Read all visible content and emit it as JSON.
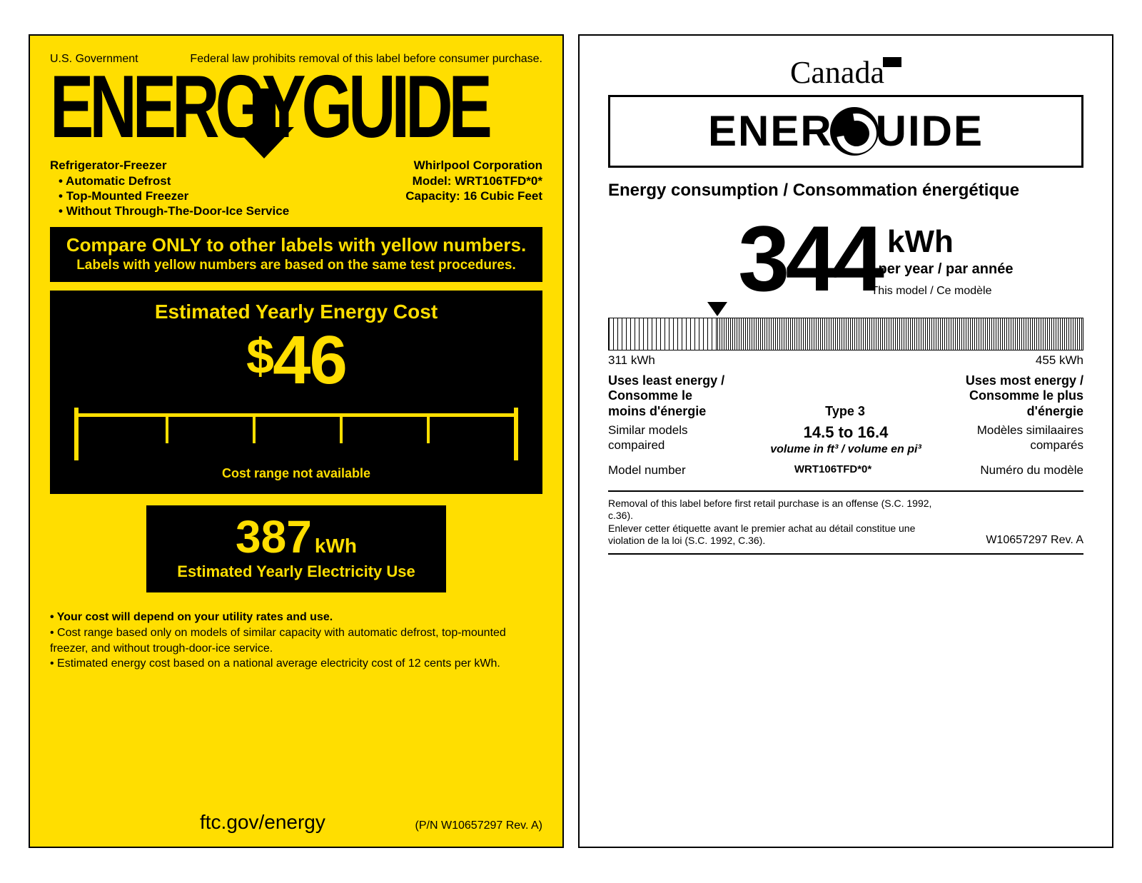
{
  "colors": {
    "us_bg": "#ffde00",
    "black": "#000000",
    "white": "#ffffff"
  },
  "us": {
    "gov": "U.S. Government",
    "law": "Federal law prohibits removal of this label before consumer purchase.",
    "logo": "ENERGYGUIDE",
    "product_type": "Refrigerator-Freezer",
    "features": [
      "Automatic Defrost",
      "Top-Mounted Freezer",
      "Without Through-The-Door-Ice Service"
    ],
    "brand": "Whirlpool Corporation",
    "model_label": "Model:",
    "model": "WRT106TFD*0*",
    "capacity_label": "Capacity:",
    "capacity": "16  Cubic Feet",
    "compare1": "Compare ONLY to other labels with yellow numbers.",
    "compare2": "Labels with yellow numbers are based on the same test procedures.",
    "cost_title": "Estimated Yearly Energy Cost",
    "cost_value": "46",
    "cost_note": "Cost range not available",
    "tick_positions_pct": [
      20,
      40,
      60,
      80
    ],
    "kwh_value": "387",
    "kwh_unit": "kWh",
    "kwh_sub": "Estimated Yearly Electricity Use",
    "note1": "Your cost will depend on your utility rates and use.",
    "note2": "Cost range based only on models of similar capacity with automatic defrost, top-mounted freezer, and without trough-door-ice service.",
    "note3": "Estimated energy cost based on a national average electricity cost of 12 cents per kWh.",
    "url": "ftc.gov/energy",
    "pn": "(P/N W10657297 Rev. A)"
  },
  "ca": {
    "country": "Canada",
    "logo_left": "ENER",
    "logo_right": "UIDE",
    "sub": "Energy consumption / Consommation énergétique",
    "kwh_value": "344",
    "kwh_unit": "kWh",
    "per": "per year / par année",
    "this_model": "This model / Ce modèle",
    "range_min": 311,
    "range_max": 455,
    "range_min_label": "311 kWh",
    "range_max_label": "455 kWh",
    "marker_value": 344,
    "least1": "Uses least energy /",
    "least2": "Consomme le",
    "least3": "moins d'énergie",
    "most1": "Uses most energy /",
    "most2": "Consomme le plus",
    "most3": "d'énergie",
    "type": "Type 3",
    "similar_l": "Similar models compaired",
    "similar_r": "Modèles similaaires comparés",
    "volume": "14.5 to 16.4",
    "volume_sub": "volume in ft³ / volume en pi³",
    "modelnum_l": "Model number",
    "modelnum_r": "Numéro du modèle",
    "model": "WRT106TFD*0*",
    "legal1": "Removal of this label before first retail purchase is an offense (S.C. 1992, c.36).",
    "legal2": "Enlever cetter étiquette avant le premier achat au détail constitue une violation de la loi (S.C. 1992, C.36).",
    "rev": "W10657297 Rev. A"
  }
}
